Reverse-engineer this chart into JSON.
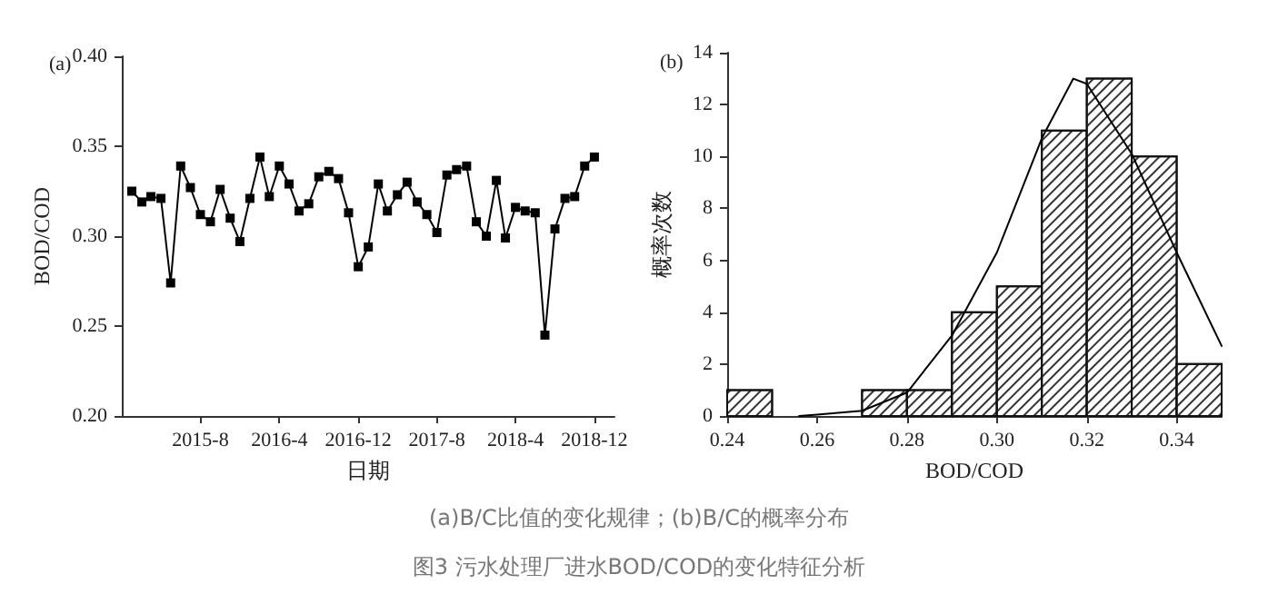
{
  "chart_data": [
    {
      "type": "line",
      "title": "(a)",
      "xlabel": "日期",
      "ylabel": "BOD/COD",
      "x": [
        "2015-01",
        "2015-02",
        "2015-03",
        "2015-04",
        "2015-05",
        "2015-06",
        "2015-07",
        "2015-08",
        "2015-09",
        "2015-10",
        "2015-11",
        "2015-12",
        "2016-01",
        "2016-02",
        "2016-03",
        "2016-04",
        "2016-05",
        "2016-06",
        "2016-07",
        "2016-08",
        "2016-09",
        "2016-10",
        "2016-11",
        "2016-12",
        "2017-01",
        "2017-02",
        "2017-03",
        "2017-04",
        "2017-05",
        "2017-06",
        "2017-07",
        "2017-08",
        "2017-09",
        "2017-10",
        "2017-11",
        "2017-12",
        "2018-01",
        "2018-02",
        "2018-03",
        "2018-04",
        "2018-05",
        "2018-06",
        "2018-07",
        "2018-08",
        "2018-09",
        "2018-10",
        "2018-11",
        "2018-12"
      ],
      "series": [
        {
          "color": "#000000",
          "values": [
            0.325,
            0.319,
            0.322,
            0.321,
            0.274,
            0.339,
            0.327,
            0.312,
            0.308,
            0.326,
            0.31,
            0.297,
            0.321,
            0.344,
            0.322,
            0.339,
            0.329,
            0.314,
            0.318,
            0.333,
            0.336,
            0.332,
            0.313,
            0.283,
            0.294,
            0.329,
            0.314,
            0.323,
            0.33,
            0.319,
            0.312,
            0.302,
            0.334,
            0.337,
            0.339,
            0.308,
            0.3,
            0.331,
            0.299,
            0.316,
            0.314,
            0.313,
            0.245,
            0.304,
            0.321,
            0.322,
            0.339,
            0.344
          ]
        }
      ],
      "xlim": [
        "2014-12",
        "2019-02"
      ],
      "xticks": [
        {
          "value": "2015-08",
          "label": "2015-8"
        },
        {
          "value": "2016-04",
          "label": "2016-4"
        },
        {
          "value": "2016-12",
          "label": "2016-12"
        },
        {
          "value": "2017-08",
          "label": "2017-8"
        },
        {
          "value": "2018-04",
          "label": "2018-4"
        },
        {
          "value": "2018-12",
          "label": "2018-12"
        }
      ],
      "ylim": [
        0.2,
        0.4
      ],
      "yticks": [
        {
          "value": 0.2,
          "label": "0.20"
        },
        0.25,
        {
          "value": 0.3,
          "label": "0.30"
        },
        0.35,
        {
          "value": 0.4,
          "label": "0.40"
        }
      ],
      "marker": "square",
      "line_style": "solid",
      "grid": false
    },
    {
      "type": "histogram",
      "title": "(b)",
      "xlabel": "BOD/COD",
      "ylabel": "概率次数",
      "bins": [
        0.24,
        0.25,
        0.26,
        0.27,
        0.28,
        0.29,
        0.3,
        0.31,
        0.32,
        0.33,
        0.34,
        0.35
      ],
      "values": [
        1,
        0,
        0,
        1,
        1,
        4,
        5,
        11,
        13,
        10,
        2
      ],
      "color": "#ffffff",
      "series": [
        {
          "type": "line",
          "color": "#000000",
          "x": [
            0.256,
            0.26,
            0.27,
            0.28,
            0.29,
            0.3,
            0.31,
            0.317,
            0.32,
            0.33,
            0.34,
            0.35
          ],
          "values": [
            0,
            0.05,
            0.2,
            0.9,
            3.1,
            6.3,
            10.7,
            13.0,
            12.8,
            10.1,
            6.3,
            2.7
          ]
        }
      ],
      "xlim": [
        0.24,
        0.35
      ],
      "xticks": [
        0.24,
        0.26,
        0.28,
        {
          "value": 0.3,
          "label": "0.30"
        },
        0.32,
        0.34
      ],
      "ylim": [
        0,
        14
      ],
      "yticks": [
        0,
        2,
        4,
        6,
        8,
        10,
        12,
        14
      ],
      "marker": "none",
      "grid": false
    },
    {
      "type": "other",
      "annotations": [
        "(a)B/C比值的变化规律；(b)B/C的概率分布",
        "图3 污水处理厂进水BOD/COD的变化特征分析"
      ]
    }
  ]
}
